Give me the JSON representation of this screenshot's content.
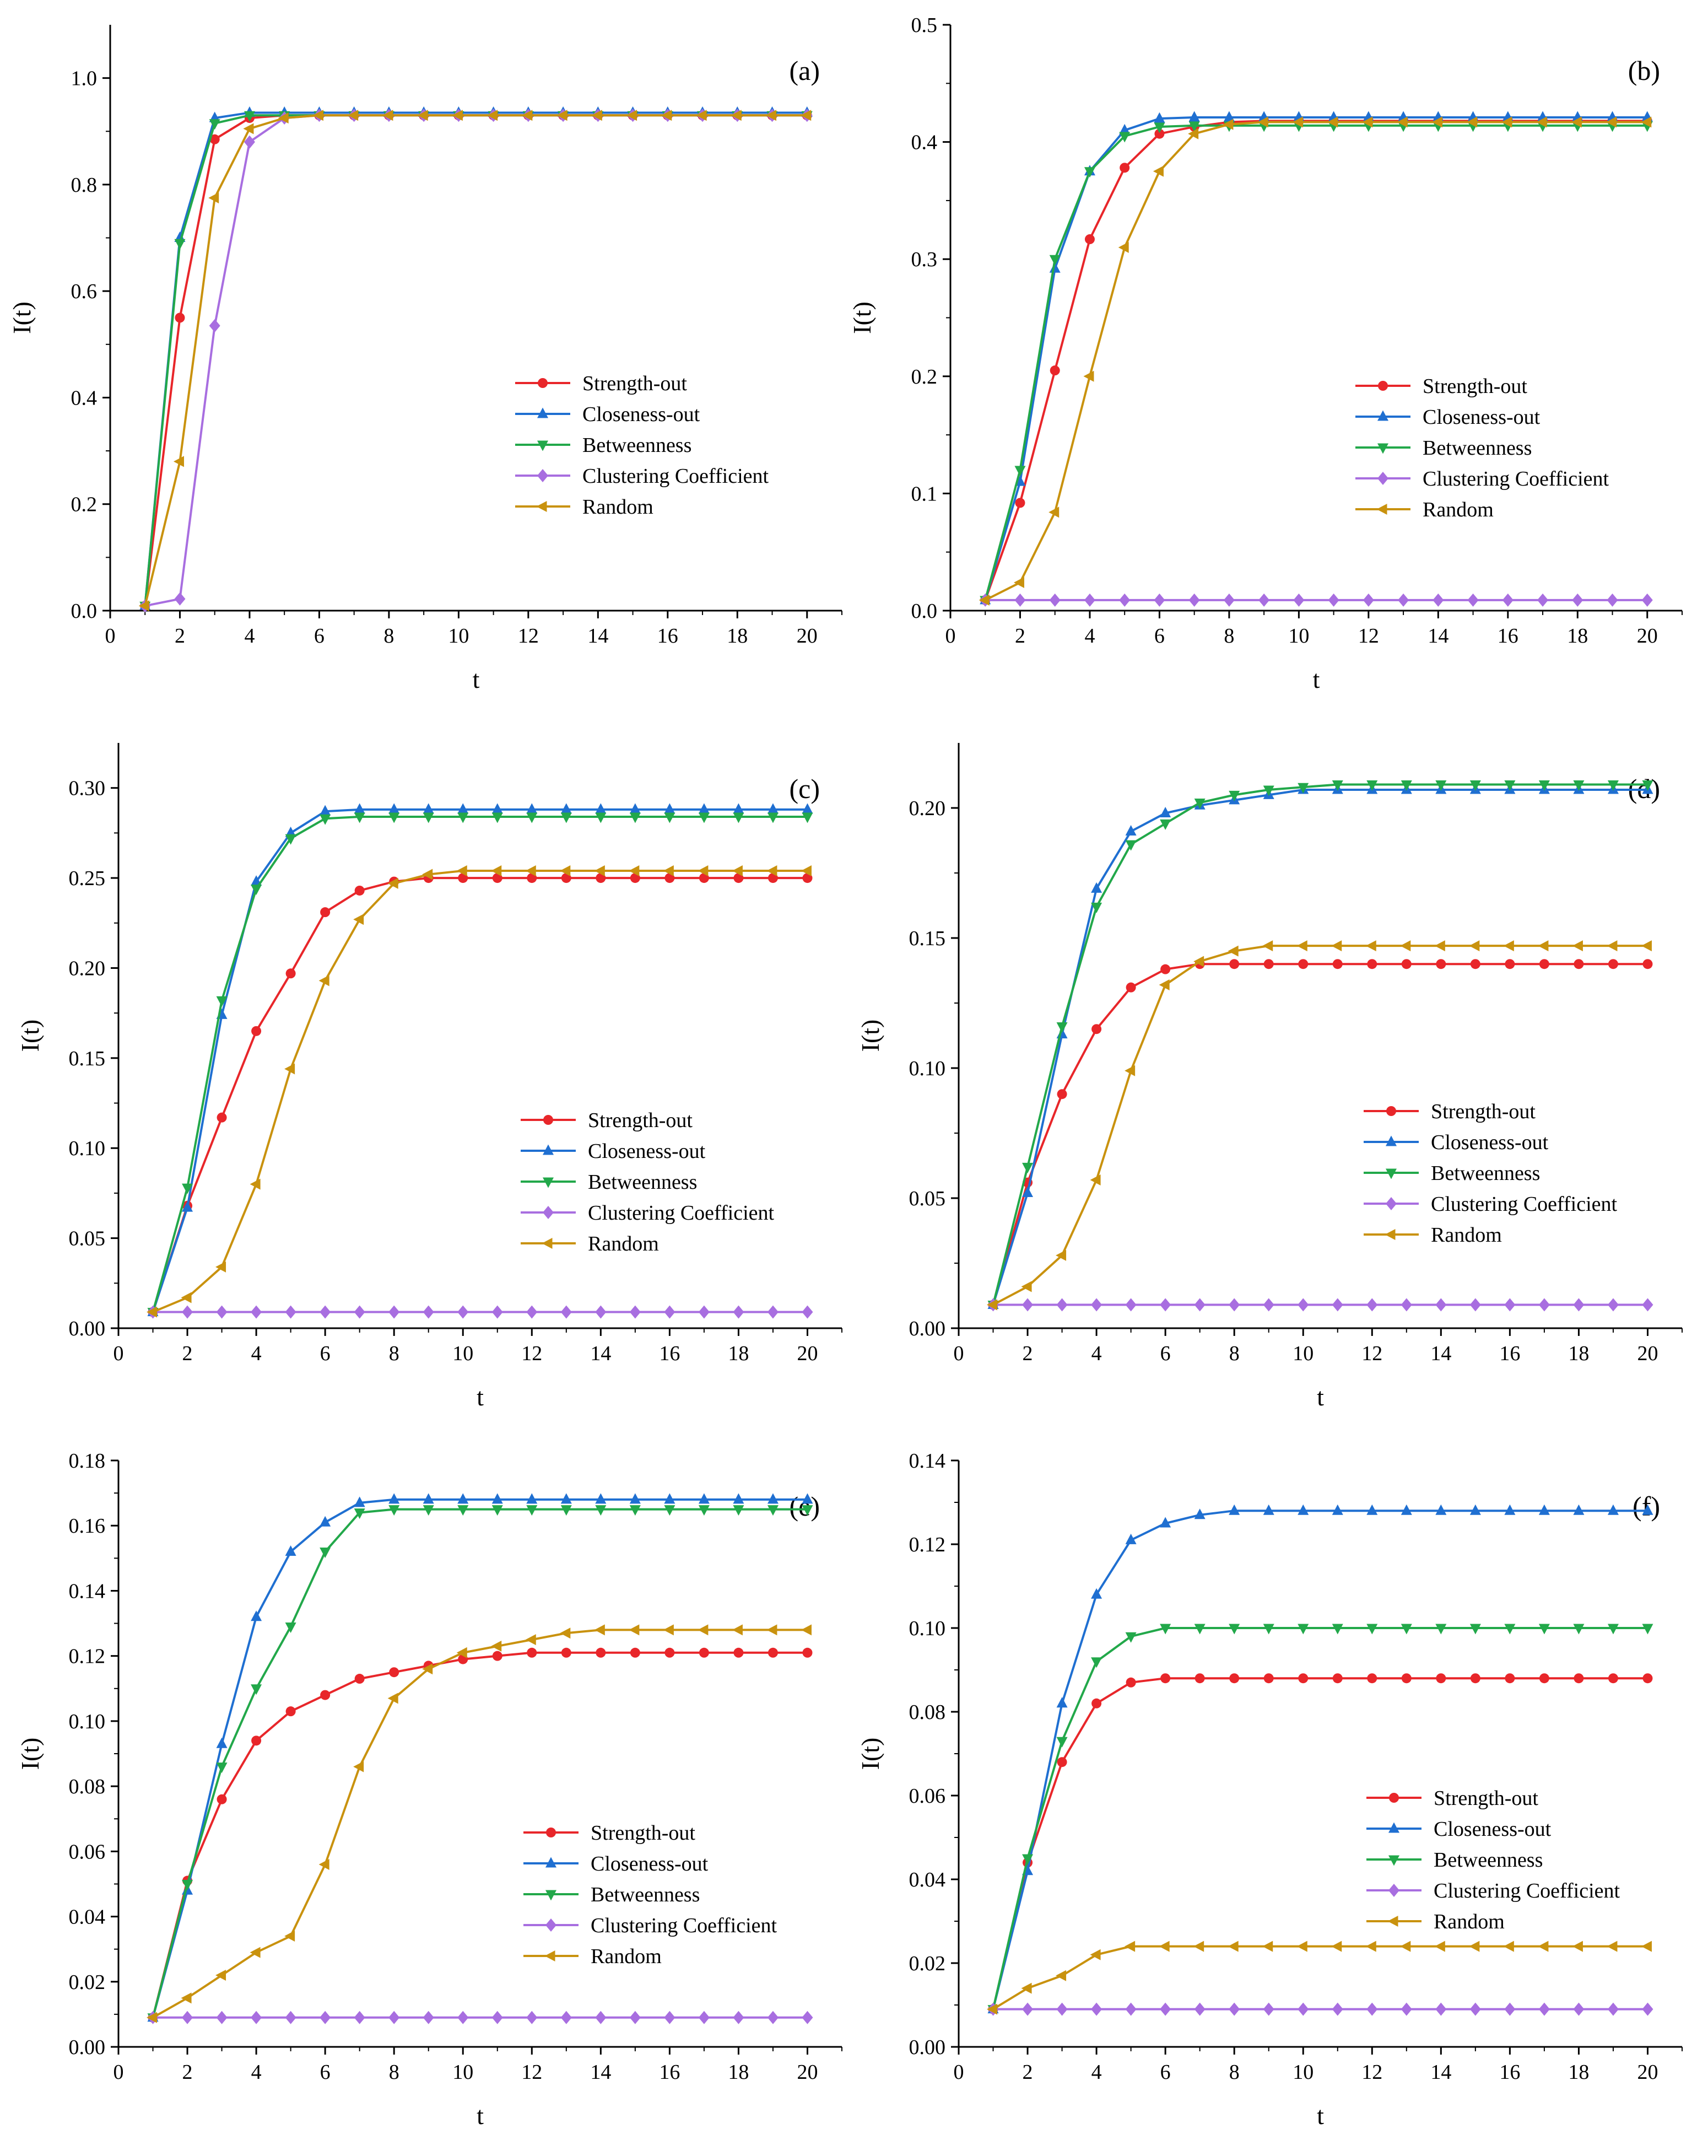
{
  "colors": {
    "Strength-out": "#e8262a",
    "Closeness-out": "#1f6fd1",
    "Betweenness": "#22a84a",
    "Clustering Coefficient": "#a86ee0",
    "Random": "#c9920e"
  },
  "chart_data": [
    {
      "type": "line",
      "panel": "(a)",
      "xlabel": "t",
      "ylabel": "I(t)",
      "xlim": [
        0,
        21
      ],
      "ylim": [
        0,
        1.1
      ],
      "xticks": [
        "0",
        "2",
        "4",
        "6",
        "8",
        "10",
        "12",
        "14",
        "16",
        "18",
        "20"
      ],
      "yticks": [
        "0.0",
        "0.2",
        "0.4",
        "0.6",
        "0.8",
        "1.0"
      ],
      "x": [
        1,
        2,
        3,
        4,
        5,
        6,
        7,
        8,
        9,
        10,
        11,
        12,
        13,
        14,
        15,
        16,
        17,
        18,
        19,
        20
      ],
      "series": [
        {
          "name": "Strength-out",
          "marker": "circle",
          "values": [
            0.009,
            0.55,
            0.885,
            0.925,
            0.93,
            0.93,
            0.93,
            0.93,
            0.93,
            0.93,
            0.93,
            0.93,
            0.93,
            0.93,
            0.93,
            0.93,
            0.93,
            0.93,
            0.93,
            0.93
          ]
        },
        {
          "name": "Closeness-out",
          "marker": "triangle-up",
          "values": [
            0.009,
            0.7,
            0.925,
            0.935,
            0.935,
            0.935,
            0.935,
            0.935,
            0.935,
            0.935,
            0.935,
            0.935,
            0.935,
            0.935,
            0.935,
            0.935,
            0.935,
            0.935,
            0.935,
            0.935
          ]
        },
        {
          "name": "Betweenness",
          "marker": "triangle-down",
          "values": [
            0.009,
            0.69,
            0.915,
            0.93,
            0.93,
            0.93,
            0.93,
            0.93,
            0.93,
            0.93,
            0.93,
            0.93,
            0.93,
            0.93,
            0.93,
            0.93,
            0.93,
            0.93,
            0.93,
            0.93
          ]
        },
        {
          "name": "Clustering Coefficient",
          "marker": "diamond",
          "values": [
            0.009,
            0.022,
            0.535,
            0.88,
            0.925,
            0.93,
            0.93,
            0.93,
            0.93,
            0.93,
            0.93,
            0.93,
            0.93,
            0.93,
            0.93,
            0.93,
            0.93,
            0.93,
            0.93,
            0.93
          ]
        },
        {
          "name": "Random",
          "marker": "triangle-left",
          "values": [
            0.009,
            0.28,
            0.775,
            0.905,
            0.925,
            0.93,
            0.93,
            0.93,
            0.93,
            0.93,
            0.93,
            0.93,
            0.93,
            0.93,
            0.93,
            0.93,
            0.93,
            0.93,
            0.93,
            0.93
          ]
        }
      ]
    },
    {
      "type": "line",
      "panel": "(b)",
      "xlabel": "t",
      "ylabel": "I(t)",
      "xlim": [
        0,
        21
      ],
      "ylim": [
        0,
        0.5
      ],
      "xticks": [
        "0",
        "2",
        "4",
        "6",
        "8",
        "10",
        "12",
        "14",
        "16",
        "18",
        "20"
      ],
      "yticks": [
        "0.0",
        "0.1",
        "0.2",
        "0.3",
        "0.4",
        "0.5"
      ],
      "x": [
        1,
        2,
        3,
        4,
        5,
        6,
        7,
        8,
        9,
        10,
        11,
        12,
        13,
        14,
        15,
        16,
        17,
        18,
        19,
        20
      ],
      "series": [
        {
          "name": "Strength-out",
          "marker": "circle",
          "values": [
            0.009,
            0.092,
            0.205,
            0.317,
            0.378,
            0.407,
            0.413,
            0.417,
            0.418,
            0.418,
            0.418,
            0.418,
            0.418,
            0.418,
            0.418,
            0.418,
            0.418,
            0.418,
            0.418,
            0.418
          ]
        },
        {
          "name": "Closeness-out",
          "marker": "triangle-up",
          "values": [
            0.009,
            0.11,
            0.292,
            0.375,
            0.41,
            0.42,
            0.421,
            0.421,
            0.421,
            0.421,
            0.421,
            0.421,
            0.421,
            0.421,
            0.421,
            0.421,
            0.421,
            0.421,
            0.421,
            0.421
          ]
        },
        {
          "name": "Betweenness",
          "marker": "triangle-down",
          "values": [
            0.009,
            0.12,
            0.3,
            0.375,
            0.405,
            0.413,
            0.414,
            0.414,
            0.414,
            0.414,
            0.414,
            0.414,
            0.414,
            0.414,
            0.414,
            0.414,
            0.414,
            0.414,
            0.414,
            0.414
          ]
        },
        {
          "name": "Clustering Coefficient",
          "marker": "diamond",
          "values": [
            0.009,
            0.009,
            0.009,
            0.009,
            0.009,
            0.009,
            0.009,
            0.009,
            0.009,
            0.009,
            0.009,
            0.009,
            0.009,
            0.009,
            0.009,
            0.009,
            0.009,
            0.009,
            0.009,
            0.009
          ]
        },
        {
          "name": "Random",
          "marker": "triangle-left",
          "values": [
            0.009,
            0.024,
            0.084,
            0.2,
            0.31,
            0.375,
            0.407,
            0.415,
            0.417,
            0.417,
            0.417,
            0.417,
            0.417,
            0.417,
            0.417,
            0.417,
            0.417,
            0.417,
            0.417,
            0.417
          ]
        }
      ]
    },
    {
      "type": "line",
      "panel": "(c)",
      "xlabel": "t",
      "ylabel": "I(t)",
      "xlim": [
        0,
        21
      ],
      "ylim": [
        0,
        0.325
      ],
      "xticks": [
        "0",
        "2",
        "4",
        "6",
        "8",
        "10",
        "12",
        "14",
        "16",
        "18",
        "20"
      ],
      "yticks": [
        "0.00",
        "0.05",
        "0.10",
        "0.15",
        "0.20",
        "0.25",
        "0.30"
      ],
      "x": [
        1,
        2,
        3,
        4,
        5,
        6,
        7,
        8,
        9,
        10,
        11,
        12,
        13,
        14,
        15,
        16,
        17,
        18,
        19,
        20
      ],
      "series": [
        {
          "name": "Strength-out",
          "marker": "circle",
          "values": [
            0.009,
            0.068,
            0.117,
            0.165,
            0.197,
            0.231,
            0.243,
            0.248,
            0.25,
            0.25,
            0.25,
            0.25,
            0.25,
            0.25,
            0.25,
            0.25,
            0.25,
            0.25,
            0.25,
            0.25
          ]
        },
        {
          "name": "Closeness-out",
          "marker": "triangle-up",
          "values": [
            0.009,
            0.067,
            0.174,
            0.248,
            0.275,
            0.287,
            0.288,
            0.288,
            0.288,
            0.288,
            0.288,
            0.288,
            0.288,
            0.288,
            0.288,
            0.288,
            0.288,
            0.288,
            0.288,
            0.288
          ]
        },
        {
          "name": "Betweenness",
          "marker": "triangle-down",
          "values": [
            0.009,
            0.078,
            0.182,
            0.244,
            0.272,
            0.283,
            0.284,
            0.284,
            0.284,
            0.284,
            0.284,
            0.284,
            0.284,
            0.284,
            0.284,
            0.284,
            0.284,
            0.284,
            0.284,
            0.284
          ]
        },
        {
          "name": "Clustering Coefficient",
          "marker": "diamond",
          "values": [
            0.009,
            0.009,
            0.009,
            0.009,
            0.009,
            0.009,
            0.009,
            0.009,
            0.009,
            0.009,
            0.009,
            0.009,
            0.009,
            0.009,
            0.009,
            0.009,
            0.009,
            0.009,
            0.009,
            0.009
          ]
        },
        {
          "name": "Random",
          "marker": "triangle-left",
          "values": [
            0.009,
            0.017,
            0.034,
            0.08,
            0.144,
            0.193,
            0.227,
            0.247,
            0.252,
            0.254,
            0.254,
            0.254,
            0.254,
            0.254,
            0.254,
            0.254,
            0.254,
            0.254,
            0.254,
            0.254
          ]
        }
      ]
    },
    {
      "type": "line",
      "panel": "(d)",
      "xlabel": "t",
      "ylabel": "I(t)",
      "xlim": [
        0,
        21
      ],
      "ylim": [
        0,
        0.225
      ],
      "xticks": [
        "0",
        "2",
        "4",
        "6",
        "8",
        "10",
        "12",
        "14",
        "16",
        "18",
        "20"
      ],
      "yticks": [
        "0.00",
        "0.05",
        "0.10",
        "0.15",
        "0.20"
      ],
      "x": [
        1,
        2,
        3,
        4,
        5,
        6,
        7,
        8,
        9,
        10,
        11,
        12,
        13,
        14,
        15,
        16,
        17,
        18,
        19,
        20
      ],
      "series": [
        {
          "name": "Strength-out",
          "marker": "circle",
          "values": [
            0.009,
            0.056,
            0.09,
            0.115,
            0.131,
            0.138,
            0.14,
            0.14,
            0.14,
            0.14,
            0.14,
            0.14,
            0.14,
            0.14,
            0.14,
            0.14,
            0.14,
            0.14,
            0.14,
            0.14
          ]
        },
        {
          "name": "Closeness-out",
          "marker": "triangle-up",
          "values": [
            0.009,
            0.052,
            0.113,
            0.169,
            0.191,
            0.198,
            0.201,
            0.203,
            0.205,
            0.207,
            0.207,
            0.207,
            0.207,
            0.207,
            0.207,
            0.207,
            0.207,
            0.207,
            0.207,
            0.207
          ]
        },
        {
          "name": "Betweenness",
          "marker": "triangle-down",
          "values": [
            0.009,
            0.062,
            0.116,
            0.162,
            0.186,
            0.194,
            0.202,
            0.205,
            0.207,
            0.208,
            0.209,
            0.209,
            0.209,
            0.209,
            0.209,
            0.209,
            0.209,
            0.209,
            0.209,
            0.209
          ]
        },
        {
          "name": "Clustering Coefficient",
          "marker": "diamond",
          "values": [
            0.009,
            0.009,
            0.009,
            0.009,
            0.009,
            0.009,
            0.009,
            0.009,
            0.009,
            0.009,
            0.009,
            0.009,
            0.009,
            0.009,
            0.009,
            0.009,
            0.009,
            0.009,
            0.009,
            0.009
          ]
        },
        {
          "name": "Random",
          "marker": "triangle-left",
          "values": [
            0.009,
            0.016,
            0.028,
            0.057,
            0.099,
            0.132,
            0.141,
            0.145,
            0.147,
            0.147,
            0.147,
            0.147,
            0.147,
            0.147,
            0.147,
            0.147,
            0.147,
            0.147,
            0.147,
            0.147
          ]
        }
      ]
    },
    {
      "type": "line",
      "panel": "(e)",
      "xlabel": "t",
      "ylabel": "I(t)",
      "xlim": [
        0,
        21
      ],
      "ylim": [
        0,
        0.18
      ],
      "xticks": [
        "0",
        "2",
        "4",
        "6",
        "8",
        "10",
        "12",
        "14",
        "16",
        "18",
        "20"
      ],
      "yticks": [
        "0.00",
        "0.02",
        "0.04",
        "0.06",
        "0.08",
        "0.10",
        "0.12",
        "0.14",
        "0.16",
        "0.18"
      ],
      "x": [
        1,
        2,
        3,
        4,
        5,
        6,
        7,
        8,
        9,
        10,
        11,
        12,
        13,
        14,
        15,
        16,
        17,
        18,
        19,
        20
      ],
      "series": [
        {
          "name": "Strength-out",
          "marker": "circle",
          "values": [
            0.009,
            0.051,
            0.076,
            0.094,
            0.103,
            0.108,
            0.113,
            0.115,
            0.117,
            0.119,
            0.12,
            0.121,
            0.121,
            0.121,
            0.121,
            0.121,
            0.121,
            0.121,
            0.121,
            0.121
          ]
        },
        {
          "name": "Closeness-out",
          "marker": "triangle-up",
          "values": [
            0.009,
            0.048,
            0.093,
            0.132,
            0.152,
            0.161,
            0.167,
            0.168,
            0.168,
            0.168,
            0.168,
            0.168,
            0.168,
            0.168,
            0.168,
            0.168,
            0.168,
            0.168,
            0.168,
            0.168
          ]
        },
        {
          "name": "Betweenness",
          "marker": "triangle-down",
          "values": [
            0.009,
            0.05,
            0.086,
            0.11,
            0.129,
            0.152,
            0.164,
            0.165,
            0.165,
            0.165,
            0.165,
            0.165,
            0.165,
            0.165,
            0.165,
            0.165,
            0.165,
            0.165,
            0.165,
            0.165
          ]
        },
        {
          "name": "Clustering Coefficient",
          "marker": "diamond",
          "values": [
            0.009,
            0.009,
            0.009,
            0.009,
            0.009,
            0.009,
            0.009,
            0.009,
            0.009,
            0.009,
            0.009,
            0.009,
            0.009,
            0.009,
            0.009,
            0.009,
            0.009,
            0.009,
            0.009,
            0.009
          ]
        },
        {
          "name": "Random",
          "marker": "triangle-left",
          "values": [
            0.009,
            0.015,
            0.022,
            0.029,
            0.034,
            0.056,
            0.086,
            0.107,
            0.116,
            0.121,
            0.123,
            0.125,
            0.127,
            0.128,
            0.128,
            0.128,
            0.128,
            0.128,
            0.128,
            0.128
          ]
        }
      ]
    },
    {
      "type": "line",
      "panel": "(f)",
      "xlabel": "t",
      "ylabel": "I(t)",
      "xlim": [
        0,
        21
      ],
      "ylim": [
        0,
        0.14
      ],
      "xticks": [
        "0",
        "2",
        "4",
        "6",
        "8",
        "10",
        "12",
        "14",
        "16",
        "18",
        "20"
      ],
      "yticks": [
        "0.00",
        "0.02",
        "0.04",
        "0.06",
        "0.08",
        "0.10",
        "0.12",
        "0.14"
      ],
      "x": [
        1,
        2,
        3,
        4,
        5,
        6,
        7,
        8,
        9,
        10,
        11,
        12,
        13,
        14,
        15,
        16,
        17,
        18,
        19,
        20
      ],
      "series": [
        {
          "name": "Strength-out",
          "marker": "circle",
          "values": [
            0.009,
            0.044,
            0.068,
            0.082,
            0.087,
            0.088,
            0.088,
            0.088,
            0.088,
            0.088,
            0.088,
            0.088,
            0.088,
            0.088,
            0.088,
            0.088,
            0.088,
            0.088,
            0.088,
            0.088
          ]
        },
        {
          "name": "Closeness-out",
          "marker": "triangle-up",
          "values": [
            0.009,
            0.042,
            0.082,
            0.108,
            0.121,
            0.125,
            0.127,
            0.128,
            0.128,
            0.128,
            0.128,
            0.128,
            0.128,
            0.128,
            0.128,
            0.128,
            0.128,
            0.128,
            0.128,
            0.128
          ]
        },
        {
          "name": "Betweenness",
          "marker": "triangle-down",
          "values": [
            0.009,
            0.045,
            0.073,
            0.092,
            0.098,
            0.1,
            0.1,
            0.1,
            0.1,
            0.1,
            0.1,
            0.1,
            0.1,
            0.1,
            0.1,
            0.1,
            0.1,
            0.1,
            0.1,
            0.1
          ]
        },
        {
          "name": "Clustering Coefficient",
          "marker": "diamond",
          "values": [
            0.009,
            0.009,
            0.009,
            0.009,
            0.009,
            0.009,
            0.009,
            0.009,
            0.009,
            0.009,
            0.009,
            0.009,
            0.009,
            0.009,
            0.009,
            0.009,
            0.009,
            0.009,
            0.009,
            0.009
          ]
        },
        {
          "name": "Random",
          "marker": "triangle-left",
          "values": [
            0.009,
            0.014,
            0.017,
            0.022,
            0.024,
            0.024,
            0.024,
            0.024,
            0.024,
            0.024,
            0.024,
            0.024,
            0.024,
            0.024,
            0.024,
            0.024,
            0.024,
            0.024,
            0.024,
            0.024
          ]
        }
      ]
    }
  ]
}
